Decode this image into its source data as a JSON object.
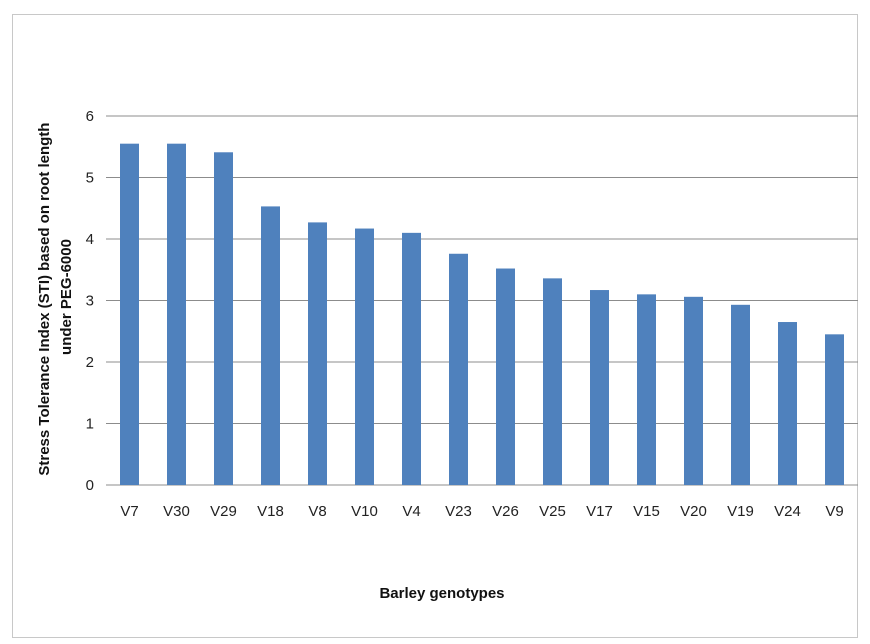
{
  "chart_data": {
    "type": "bar",
    "title": "",
    "xlabel": "Barley genotypes",
    "ylabel_lines": [
      "Stress Tolerance Index (STI) based on root length",
      "under PEG-6000"
    ],
    "categories": [
      "V7",
      "V30",
      "V29",
      "V18",
      "V8",
      "V10",
      "V4",
      "V23",
      "V26",
      "V25",
      "V17",
      "V15",
      "V20",
      "V19",
      "V24",
      "V9"
    ],
    "values": [
      5.55,
      5.55,
      5.41,
      4.53,
      4.27,
      4.17,
      4.1,
      3.76,
      3.52,
      3.36,
      3.17,
      3.1,
      3.06,
      2.93,
      2.65,
      2.45
    ],
    "ylim": [
      0,
      6
    ],
    "yticks": [
      0,
      1,
      2,
      3,
      4,
      5,
      6
    ],
    "grid": true,
    "legend": "none",
    "bar_color": "#4f81bd",
    "grid_color": "#8c8c8c"
  }
}
